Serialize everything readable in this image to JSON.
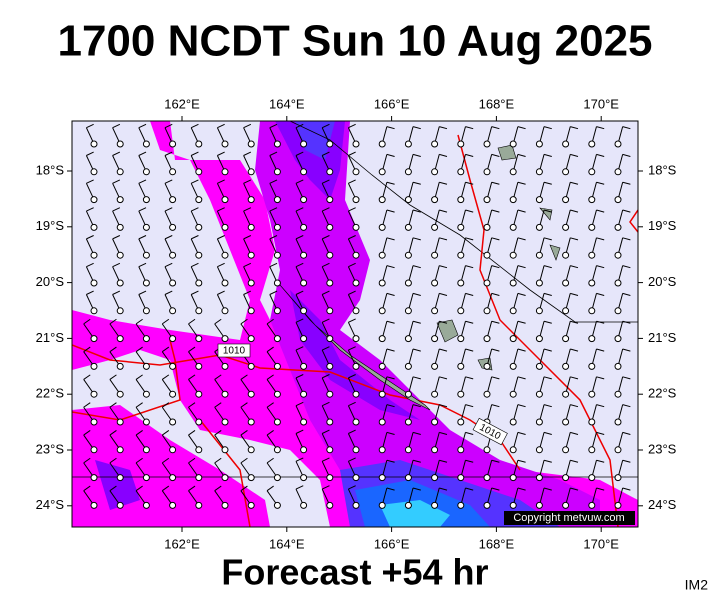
{
  "title": "1700 NCDT Sun 10 Aug 2025",
  "footer": "Forecast +54 hr",
  "corner_label": "IM2",
  "copyright": "Copyright metvuw.com",
  "map": {
    "longitude_labels": [
      "162°E",
      "164°E",
      "166°E",
      "168°E",
      "170°E"
    ],
    "latitude_labels": [
      "18°S",
      "19°S",
      "20°S",
      "21°S",
      "22°S",
      "23°S",
      "24°S"
    ],
    "contour_labels": [
      "1010",
      "1010"
    ]
  }
}
